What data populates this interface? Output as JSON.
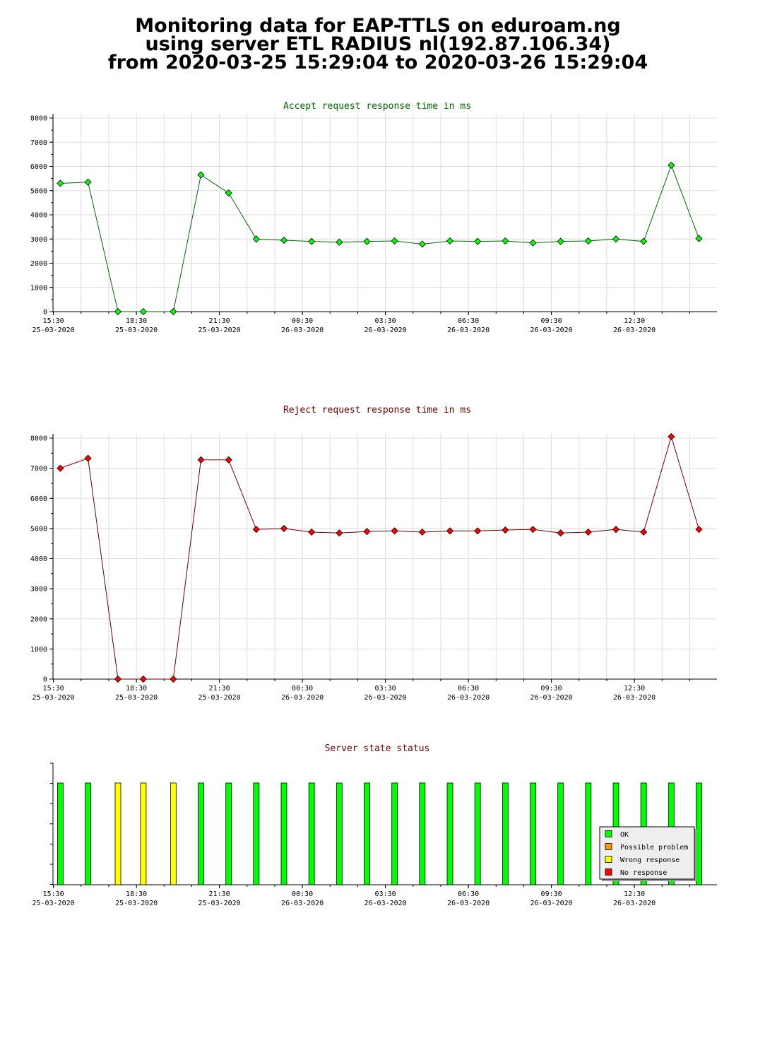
{
  "header": {
    "line1": "Monitoring data for EAP-TTLS on eduroam.ng",
    "line2": "using server ETL RADIUS nl(192.87.106.34)",
    "line3": "from 2020-03-25 15:29:04 to 2020-03-26 15:29:04"
  },
  "colors": {
    "accept": "#00ff00",
    "reject": "#ff0000",
    "title_accept": "#006600",
    "title_reject": "#660000",
    "line_accept": "#006600",
    "line_reject": "#660000",
    "grid": "#dddddd",
    "ok": "#00ff00",
    "possible": "#ff9900",
    "wrong": "#ffff00",
    "none": "#ff0000"
  },
  "x_axis": {
    "ticks": [
      {
        "time": "15:30",
        "date": "25-03-2020"
      },
      {
        "time": "18:30",
        "date": "25-03-2020"
      },
      {
        "time": "21:30",
        "date": "25-03-2020"
      },
      {
        "time": "00:30",
        "date": "26-03-2020"
      },
      {
        "time": "03:30",
        "date": "26-03-2020"
      },
      {
        "time": "06:30",
        "date": "26-03-2020"
      },
      {
        "time": "09:30",
        "date": "26-03-2020"
      },
      {
        "time": "12:30",
        "date": "26-03-2020"
      }
    ]
  },
  "chart_data": [
    {
      "type": "line",
      "title": "Accept request response time in ms",
      "x": [
        "2020-03-25 15:45",
        "2020-03-25 16:45",
        "2020-03-25 17:50",
        "2020-03-25 18:45",
        "2020-03-25 19:50",
        "2020-03-25 20:50",
        "2020-03-25 21:50",
        "2020-03-25 22:50",
        "2020-03-25 23:50",
        "2020-03-26 00:50",
        "2020-03-26 01:50",
        "2020-03-26 02:50",
        "2020-03-26 03:50",
        "2020-03-26 04:50",
        "2020-03-26 05:50",
        "2020-03-26 06:50",
        "2020-03-26 07:50",
        "2020-03-26 08:50",
        "2020-03-26 09:50",
        "2020-03-26 10:50",
        "2020-03-26 11:50",
        "2020-03-26 12:50",
        "2020-03-26 13:50",
        "2020-03-26 14:50"
      ],
      "values": [
        5300,
        5350,
        0,
        0,
        0,
        5650,
        4900,
        3000,
        2950,
        2900,
        2870,
        2900,
        2920,
        2790,
        2920,
        2900,
        2920,
        2840,
        2900,
        2920,
        3000,
        2900,
        6050,
        3020
      ],
      "ylim": [
        0,
        8000
      ],
      "yticks": [
        0,
        1000,
        2000,
        3000,
        4000,
        5000,
        6000,
        7000,
        8000
      ],
      "grid": true
    },
    {
      "type": "line",
      "title": "Reject request response time in ms",
      "x": [
        "2020-03-25 15:45",
        "2020-03-25 16:45",
        "2020-03-25 17:50",
        "2020-03-25 18:45",
        "2020-03-25 19:50",
        "2020-03-25 20:50",
        "2020-03-25 21:50",
        "2020-03-25 22:50",
        "2020-03-25 23:50",
        "2020-03-26 00:50",
        "2020-03-26 01:50",
        "2020-03-26 02:50",
        "2020-03-26 03:50",
        "2020-03-26 04:50",
        "2020-03-26 05:50",
        "2020-03-26 06:50",
        "2020-03-26 07:50",
        "2020-03-26 08:50",
        "2020-03-26 09:50",
        "2020-03-26 10:50",
        "2020-03-26 11:50",
        "2020-03-26 12:50",
        "2020-03-26 13:50",
        "2020-03-26 14:50"
      ],
      "values": [
        7000,
        7330,
        0,
        0,
        0,
        7280,
        7280,
        4970,
        5000,
        4880,
        4850,
        4900,
        4920,
        4880,
        4920,
        4920,
        4950,
        4970,
        4850,
        4880,
        4970,
        4880,
        8050,
        4970
      ],
      "ylim": [
        0,
        8000
      ],
      "yticks": [
        0,
        1000,
        2000,
        3000,
        4000,
        5000,
        6000,
        7000,
        8000
      ],
      "grid": true
    },
    {
      "type": "bar",
      "title": "Server state status",
      "x": [
        "2020-03-25 15:45",
        "2020-03-25 16:45",
        "2020-03-25 17:50",
        "2020-03-25 18:45",
        "2020-03-25 19:50",
        "2020-03-25 20:50",
        "2020-03-25 21:50",
        "2020-03-25 22:50",
        "2020-03-25 23:50",
        "2020-03-26 00:50",
        "2020-03-26 01:50",
        "2020-03-26 02:50",
        "2020-03-26 03:50",
        "2020-03-26 04:50",
        "2020-03-26 05:50",
        "2020-03-26 06:50",
        "2020-03-26 07:50",
        "2020-03-26 08:50",
        "2020-03-26 09:50",
        "2020-03-26 10:50",
        "2020-03-26 11:50",
        "2020-03-26 12:50",
        "2020-03-26 13:50",
        "2020-03-26 14:50"
      ],
      "states": [
        "ok",
        "ok",
        "wrong",
        "wrong",
        "wrong",
        "ok",
        "ok",
        "ok",
        "ok",
        "ok",
        "ok",
        "ok",
        "ok",
        "ok",
        "ok",
        "ok",
        "ok",
        "ok",
        "ok",
        "ok",
        "ok",
        "ok",
        "ok",
        "ok"
      ],
      "legend": [
        {
          "key": "ok",
          "label": "OK"
        },
        {
          "key": "possible",
          "label": "Possible problem"
        },
        {
          "key": "wrong",
          "label": "Wrong response"
        },
        {
          "key": "none",
          "label": "No response"
        }
      ],
      "legend_position": "bottom-right",
      "grid": false
    }
  ]
}
